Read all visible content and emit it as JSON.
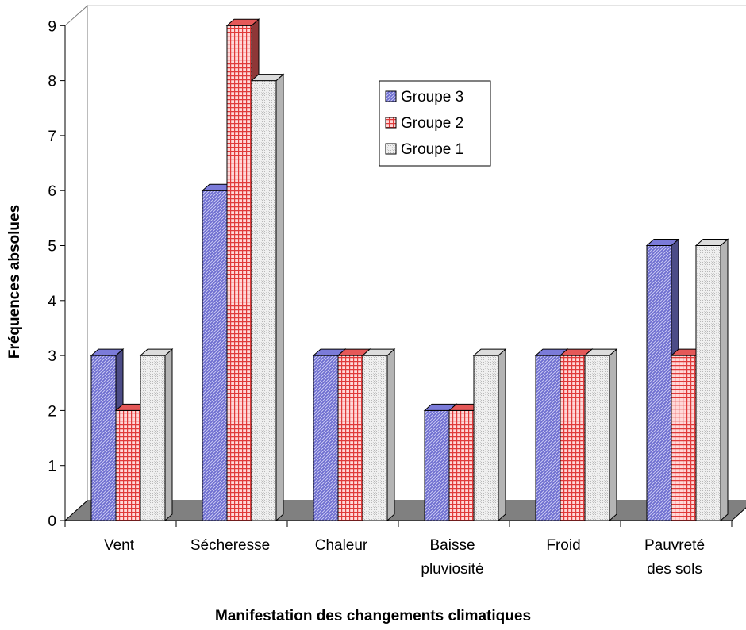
{
  "chart_data": {
    "type": "bar",
    "title": "",
    "xlabel": "Manifestation des changements climatiques",
    "ylabel": "Fréquences absolues",
    "ylim": [
      0,
      9
    ],
    "yticks": [
      "0",
      "1",
      "2",
      "3",
      "4",
      "5",
      "6",
      "7",
      "8",
      "9"
    ],
    "categories": [
      [
        "Vent"
      ],
      [
        "Sécheresse"
      ],
      [
        "Chaleur"
      ],
      [
        "Baisse",
        "pluviosité"
      ],
      [
        "Froid"
      ],
      [
        "Pauvreté",
        "des sols"
      ]
    ],
    "series": [
      {
        "name": "Groupe 3",
        "values": [
          3,
          6,
          3,
          2,
          3,
          5
        ],
        "color": "#7B7BD9"
      },
      {
        "name": "Groupe 2",
        "values": [
          2,
          9,
          3,
          2,
          3,
          3
        ],
        "color": "#E55858"
      },
      {
        "name": "Groupe 1",
        "values": [
          3,
          8,
          3,
          3,
          3,
          5
        ],
        "color": "#DCDCDC"
      }
    ],
    "legend": {
      "position": "top-right",
      "order": [
        "Groupe 3",
        "Groupe 2",
        "Groupe 1"
      ]
    },
    "grid": false,
    "style": "3d-clustered"
  }
}
